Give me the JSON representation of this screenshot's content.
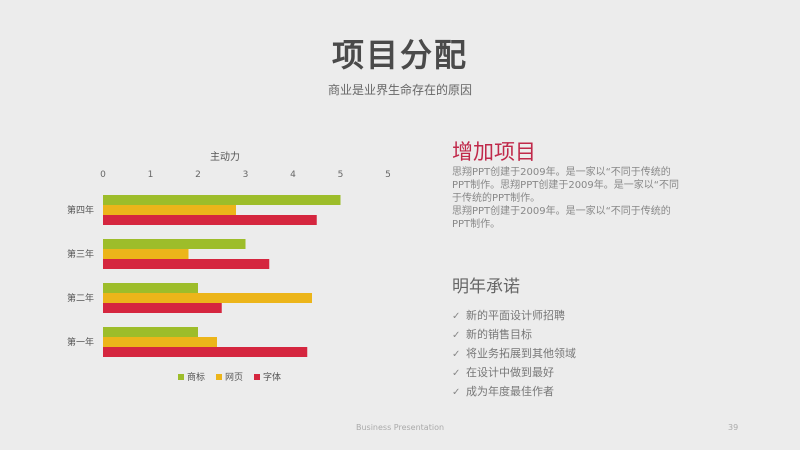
{
  "slide": {
    "title": "项目分配",
    "subtitle": "商业是业界生命存在的原因",
    "footer": "Business Presentation",
    "page_number": "39"
  },
  "right_panel": {
    "heading": "增加项目",
    "paragraph1": "思翔PPT创建于2009年。是一家以“不同于传统的PPT制作。思翔PPT创建于2009年。是一家以“不同于传统的PPT制作。",
    "paragraph2": "思翔PPT创建于2009年。是一家以“不同于传统的PPT制作。",
    "heading2": "明年承诺",
    "list": [
      "新的平面设计师招聘",
      "新的销售目标",
      "将业务拓展到其他领域",
      "在设计中做到最好",
      "成为年度最佳作者"
    ]
  },
  "colors": {
    "green": "#9dbd2a",
    "yellow": "#ecb51a",
    "red": "#d5263f"
  },
  "chart_data": {
    "type": "bar",
    "orientation": "horizontal",
    "title": "主动力",
    "categories": [
      "第四年",
      "第三年",
      "第二年",
      "第一年"
    ],
    "series": [
      {
        "name": "商标",
        "color": "#9dbd2a",
        "values": [
          5,
          3,
          2,
          2
        ]
      },
      {
        "name": "网页",
        "color": "#ecb51a",
        "values": [
          2.8,
          1.8,
          4.4,
          2.4
        ]
      },
      {
        "name": "字体",
        "color": "#d5263f",
        "values": [
          4.5,
          3.5,
          2.5,
          4.3
        ]
      }
    ],
    "xlim": [
      0,
      6
    ],
    "xticks": [
      "0",
      "1",
      "2",
      "3",
      "4",
      "5",
      "5"
    ],
    "legend_position": "bottom",
    "grid": false
  }
}
